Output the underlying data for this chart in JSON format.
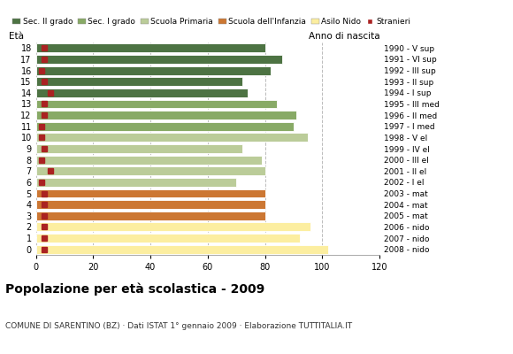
{
  "ages": [
    0,
    1,
    2,
    3,
    4,
    5,
    6,
    7,
    8,
    9,
    10,
    11,
    12,
    13,
    14,
    15,
    16,
    17,
    18
  ],
  "bar_values": [
    102,
    92,
    96,
    80,
    80,
    80,
    70,
    80,
    79,
    72,
    95,
    90,
    91,
    84,
    74,
    72,
    82,
    86,
    80
  ],
  "stranieri": [
    3,
    3,
    3,
    3,
    3,
    3,
    2,
    5,
    2,
    3,
    2,
    2,
    3,
    3,
    5,
    3,
    2,
    3,
    3
  ],
  "right_labels": [
    "2008 - nido",
    "2007 - nido",
    "2006 - nido",
    "2005 - mat",
    "2004 - mat",
    "2003 - mat",
    "2002 - I el",
    "2001 - II el",
    "2000 - III el",
    "1999 - IV el",
    "1998 - V el",
    "1997 - I med",
    "1996 - II med",
    "1995 - III med",
    "1994 - I sup",
    "1993 - II sup",
    "1992 - III sup",
    "1991 - VI sup",
    "1990 - V sup"
  ],
  "bar_colors": [
    "#FCEEA0",
    "#FCEEA0",
    "#FCEEA0",
    "#CC7733",
    "#CC7733",
    "#CC7733",
    "#BBCC99",
    "#BBCC99",
    "#BBCC99",
    "#BBCC99",
    "#BBCC99",
    "#88AA66",
    "#88AA66",
    "#88AA66",
    "#4D7343",
    "#4D7343",
    "#4D7343",
    "#4D7343",
    "#4D7343"
  ],
  "legend_labels": [
    "Sec. II grado",
    "Sec. I grado",
    "Scuola Primaria",
    "Scuola dell'Infanzia",
    "Asilo Nido",
    "Stranieri"
  ],
  "legend_colors": [
    "#4D7343",
    "#88AA66",
    "#BBCC99",
    "#CC7733",
    "#FCEEA0",
    "#AA2222"
  ],
  "title": "Popolazione per età scolastica - 2009",
  "subtitle": "COMUNE DI SARENTINO (BZ) · Dati ISTAT 1° gennaio 2009 · Elaborazione TUTTITALIA.IT",
  "ylabel_text": "Età",
  "ylabel2_text": "Anno di nascita",
  "stranieri_color": "#AA2222",
  "grid_color": "#BBBBBB",
  "bg_color": "#FFFFFF",
  "xlim": [
    0,
    120
  ],
  "xticks": [
    0,
    20,
    40,
    60,
    80,
    100,
    120
  ]
}
